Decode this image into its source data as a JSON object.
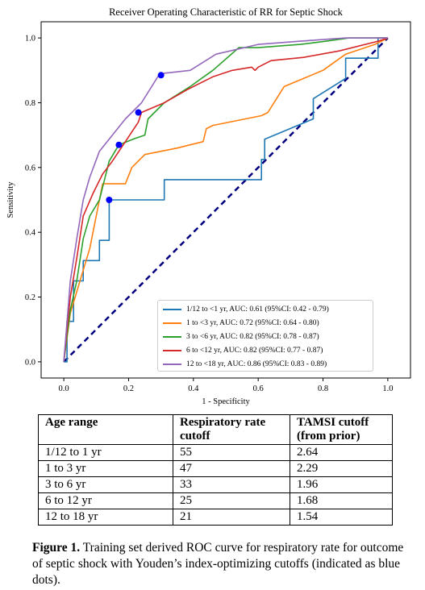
{
  "chart_data": {
    "type": "line",
    "title": "Receiver Operating Characteristic of RR for Septic Shock",
    "xlabel": "1 - Specificity",
    "ylabel": "Sensitivity",
    "xlim": [
      -0.07,
      1.07
    ],
    "ylim": [
      -0.05,
      1.05
    ],
    "xticks": [
      "0.0",
      "0.2",
      "0.4",
      "0.6",
      "0.8",
      "1.0"
    ],
    "yticks": [
      "0.0",
      "0.2",
      "0.4",
      "0.6",
      "0.8",
      "1.0"
    ],
    "legend_position": "lower-right",
    "diagonal": {
      "color": "#000080",
      "style": "dashed",
      "x": [
        0,
        1
      ],
      "y": [
        0,
        1
      ]
    },
    "cutoff_point_color": "#0000ff",
    "series": [
      {
        "name": "1/12 to <1 yr, AUC: 0.61 (95%CI: 0.42 - 0.79)",
        "color": "#1f77b4",
        "x": [
          0,
          0.01,
          0.01,
          0.03,
          0.03,
          0.06,
          0.06,
          0.11,
          0.11,
          0.14,
          0.14,
          0.31,
          0.31,
          0.61,
          0.61,
          0.62,
          0.62,
          0.77,
          0.77,
          0.87,
          0.87,
          0.97,
          0.97,
          1.0
        ],
        "y": [
          0,
          0,
          0.125,
          0.125,
          0.25,
          0.25,
          0.3125,
          0.3125,
          0.375,
          0.375,
          0.5,
          0.5,
          0.5625,
          0.5625,
          0.625,
          0.625,
          0.6875,
          0.75,
          0.8125,
          0.875,
          0.9375,
          0.9375,
          1.0,
          1.0
        ],
        "cutoff": [
          0.14,
          0.5
        ]
      },
      {
        "name": "1 to <3 yr, AUC: 0.72 (95%CI: 0.64 - 0.80)",
        "color": "#ff7f0e",
        "x": [
          0,
          0.02,
          0.05,
          0.08,
          0.1,
          0.12,
          0.19,
          0.21,
          0.25,
          0.35,
          0.43,
          0.44,
          0.46,
          0.61,
          0.63,
          0.68,
          0.8,
          0.87,
          0.96,
          1.0
        ],
        "y": [
          0,
          0.15,
          0.25,
          0.35,
          0.45,
          0.55,
          0.55,
          0.6,
          0.64,
          0.66,
          0.68,
          0.72,
          0.73,
          0.76,
          0.77,
          0.85,
          0.9,
          0.95,
          0.98,
          1.0
        ],
        "cutoff": null
      },
      {
        "name": "3 to <6 yr, AUC: 0.82 (95%CI: 0.78 - 0.87)",
        "color": "#2ca02c",
        "x": [
          0,
          0.02,
          0.04,
          0.06,
          0.08,
          0.11,
          0.14,
          0.17,
          0.22,
          0.25,
          0.26,
          0.3,
          0.31,
          0.39,
          0.46,
          0.54,
          0.6,
          0.73,
          0.81,
          0.88,
          0.95,
          1.0
        ],
        "y": [
          0,
          0.16,
          0.25,
          0.38,
          0.45,
          0.5,
          0.62,
          0.67,
          0.69,
          0.7,
          0.75,
          0.79,
          0.8,
          0.85,
          0.9,
          0.97,
          0.97,
          0.98,
          0.99,
          1.0,
          1.0,
          1.0
        ],
        "cutoff": [
          0.17,
          0.67
        ]
      },
      {
        "name": "6 to <12 yr, AUC: 0.82 (95%CI: 0.77 - 0.87)",
        "color": "#d62728",
        "x": [
          0,
          0.02,
          0.04,
          0.06,
          0.09,
          0.12,
          0.15,
          0.19,
          0.23,
          0.24,
          0.31,
          0.38,
          0.46,
          0.52,
          0.58,
          0.59,
          0.6,
          0.64,
          0.74,
          0.85,
          0.97,
          1.0
        ],
        "y": [
          0,
          0.2,
          0.32,
          0.45,
          0.52,
          0.58,
          0.62,
          0.68,
          0.74,
          0.77,
          0.8,
          0.84,
          0.88,
          0.9,
          0.91,
          0.9,
          0.91,
          0.93,
          0.94,
          0.96,
          0.99,
          1.0
        ],
        "cutoff": [
          0.23,
          0.77
        ]
      },
      {
        "name": "12 to <18 yr, AUC: 0.86 (95%CI: 0.83 - 0.89)",
        "color": "#9467bd",
        "x": [
          0,
          0.02,
          0.04,
          0.06,
          0.08,
          0.11,
          0.15,
          0.19,
          0.24,
          0.29,
          0.3,
          0.39,
          0.47,
          0.6,
          0.73,
          0.87,
          0.95,
          1.0
        ],
        "y": [
          0,
          0.25,
          0.38,
          0.5,
          0.57,
          0.65,
          0.7,
          0.75,
          0.8,
          0.88,
          0.89,
          0.9,
          0.95,
          0.98,
          0.99,
          1.0,
          1.0,
          1.0
        ],
        "cutoff": [
          0.3,
          0.885
        ]
      }
    ]
  },
  "table": {
    "headers": [
      "Age range",
      "Respiratory rate cutoff",
      "TAMSI cutoff (from prior)"
    ],
    "rows": [
      [
        "1/12 to 1 yr",
        "55",
        "2.64"
      ],
      [
        "1 to 3 yr",
        "47",
        "2.29"
      ],
      [
        "3 to 6 yr",
        "33",
        "1.96"
      ],
      [
        "6 to 12 yr",
        "25",
        "1.68"
      ],
      [
        "12 to 18 yr",
        "21",
        "1.54"
      ]
    ]
  },
  "caption": {
    "label": "Figure 1.",
    "text": "Training set derived ROC curve for respiratory rate for outcome of septic shock with Youden’s index-optimizing cutoffs (indicated as blue dots)."
  }
}
